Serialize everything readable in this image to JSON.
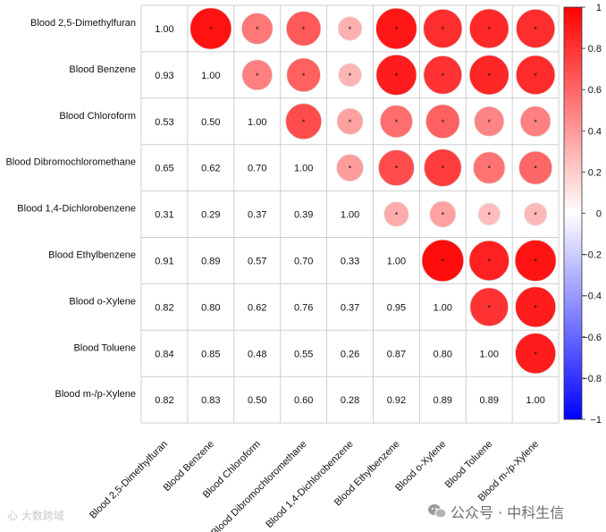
{
  "chart_data": {
    "type": "heatmap",
    "variables": [
      "Blood 2,5-Dimethylfuran",
      "Blood Benzene",
      "Blood Chloroform",
      "Blood Dibromochloromethane",
      "Blood 1,4-Dichlorobenzene",
      "Blood Ethylbenzene",
      "Blood o-Xylene",
      "Blood Toluene",
      "Blood m-/p-Xylene"
    ],
    "lower_labels": [
      [
        "1.00",
        "",
        "",
        "",
        "",
        "",
        "",
        "",
        ""
      ],
      [
        "0.93",
        "1.00",
        "",
        "",
        "",
        "",
        "",
        "",
        ""
      ],
      [
        "0.53",
        "0.50",
        "1.00",
        "",
        "",
        "",
        "",
        "",
        ""
      ],
      [
        "0.65",
        "0.62",
        "0.70",
        "1.00",
        "",
        "",
        "",
        "",
        ""
      ],
      [
        "0.31",
        "0.29",
        "0.37",
        "0.39",
        "1.00",
        "",
        "",
        "",
        ""
      ],
      [
        "0.91",
        "0.89",
        "0.57",
        "0.70",
        "0.33",
        "1.00",
        "",
        "",
        ""
      ],
      [
        "0.82",
        "0.80",
        "0.62",
        "0.76",
        "0.37",
        "0.95",
        "1.00",
        "",
        ""
      ],
      [
        "0.84",
        "0.85",
        "0.48",
        "0.55",
        "0.26",
        "0.87",
        "0.80",
        "1.00",
        ""
      ],
      [
        "0.82",
        "0.83",
        "0.50",
        "0.60",
        "0.28",
        "0.92",
        "0.89",
        "0.89",
        "1.00"
      ]
    ],
    "significance_marker": "*",
    "colorbar": {
      "range": [
        -1,
        1
      ],
      "ticks": [
        "1",
        "0.8",
        "0.6",
        "0.4",
        "0.2",
        "0",
        "−0.2",
        "−0.4",
        "−0.6",
        "−0.8",
        "−1"
      ],
      "colors": {
        "negative": "#0000ff",
        "zero": "#ffffff",
        "positive": "#ff0000"
      }
    },
    "legend_position": "right"
  },
  "watermarks": {
    "left": "心 大数跨域",
    "right": "公众号 · 中科生信"
  }
}
